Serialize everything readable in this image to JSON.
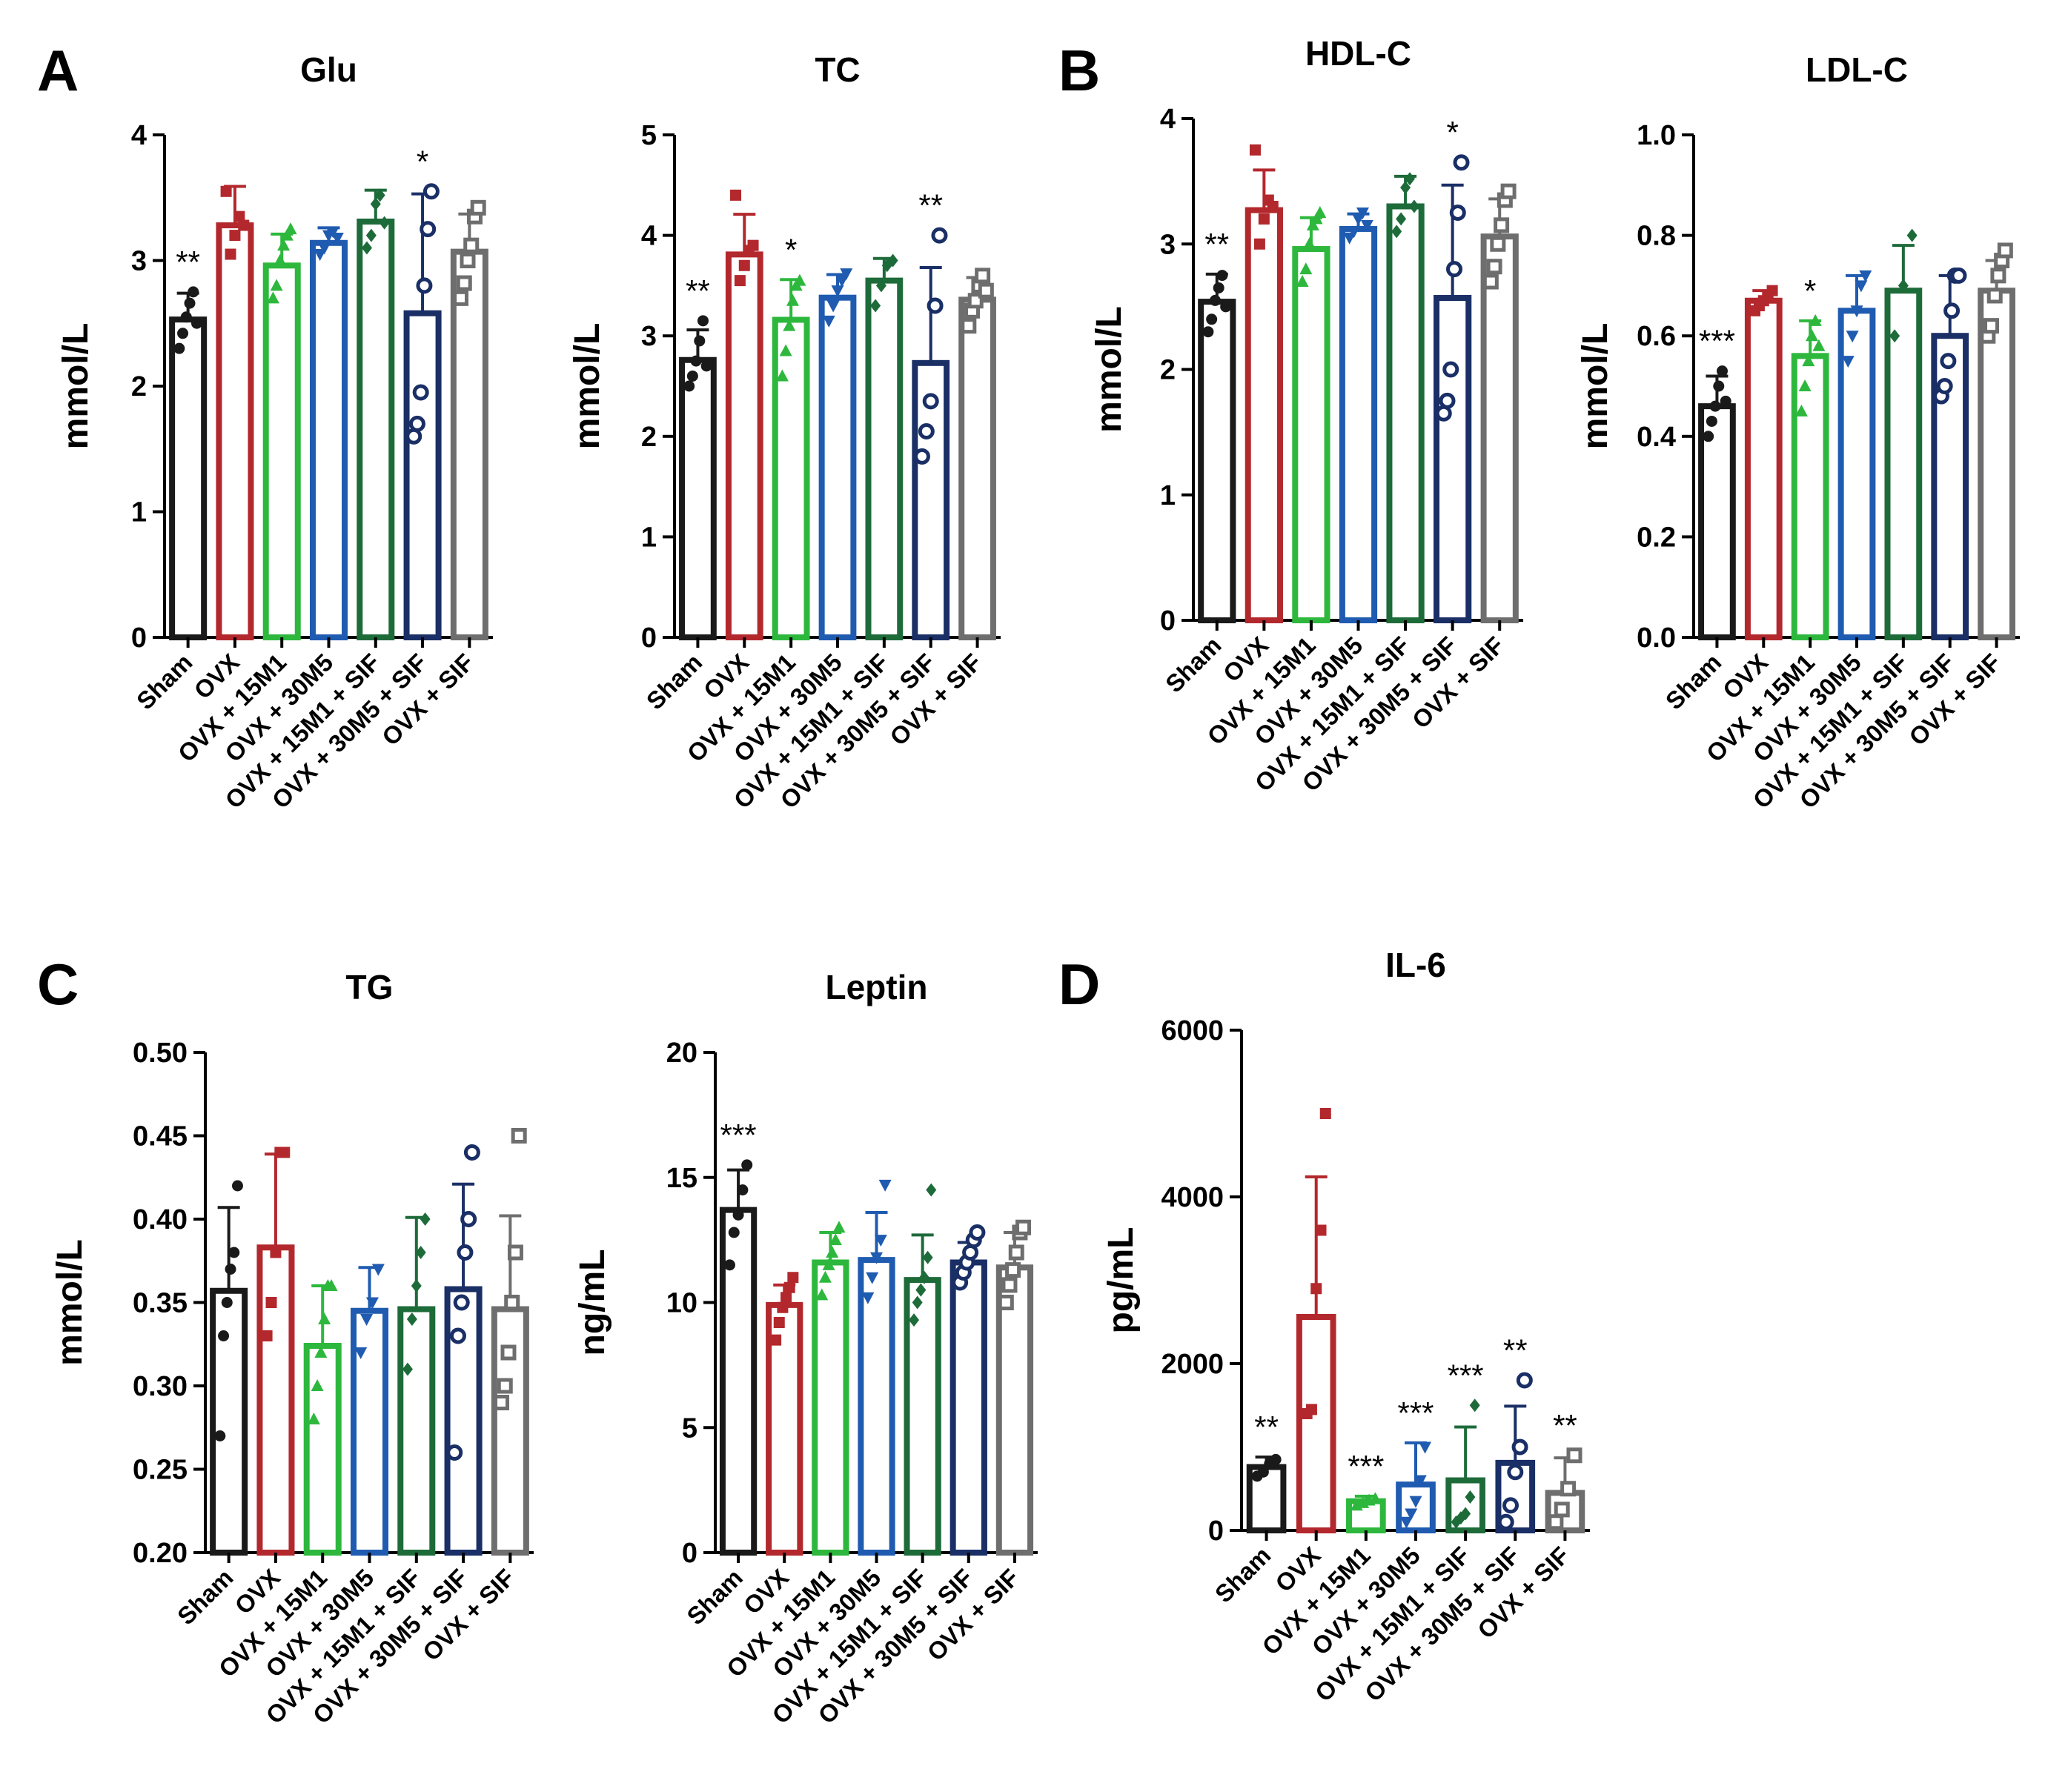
{
  "panel_letters": [
    "A",
    "B",
    "C",
    "D"
  ],
  "groups": [
    "Sham",
    "OVX",
    "OVX + 15M1",
    "OVX + 30M5",
    "OVX + 15M1 + SIF",
    "OVX + 30M5 + SIF",
    "OVX + SIF"
  ],
  "group_colors": [
    "#1a1a1a",
    "#b3282d",
    "#2db83d",
    "#1f5bb0",
    "#1e6b3a",
    "#1a2f66",
    "#6e6e6e"
  ],
  "chart_data": [
    {
      "type": "bar",
      "title": "Glu",
      "ylabel": "mmol/L",
      "ylim": [
        0,
        4
      ],
      "yticks": [
        0,
        1,
        2,
        3,
        4
      ],
      "ytick_labels": [
        "0",
        "1",
        "2",
        "3",
        "4"
      ],
      "categories": [
        "Sham",
        "OVX",
        "OVX + 15M1",
        "OVX + 30M5",
        "OVX + 15M1 + SIF",
        "OVX + 30M5 + SIF",
        "OVX + SIF"
      ],
      "values": [
        2.53,
        3.28,
        2.96,
        3.14,
        3.31,
        2.58,
        3.07
      ],
      "errors": [
        0.21,
        0.31,
        0.25,
        0.12,
        0.25,
        0.95,
        0.3
      ],
      "points": [
        [
          2.3,
          2.42,
          2.55,
          2.66,
          2.75,
          2.5
        ],
        [
          3.55,
          3.05,
          3.2,
          3.35,
          3.28
        ],
        [
          2.7,
          2.8,
          3.0,
          3.12,
          3.2,
          3.25
        ],
        [
          3.05,
          3.1,
          3.2,
          3.23,
          3.18
        ],
        [
          3.1,
          3.2,
          3.45,
          3.52,
          3.3
        ],
        [
          1.6,
          1.7,
          1.95,
          2.8,
          3.25,
          3.55
        ],
        [
          2.7,
          2.82,
          3.0,
          3.12,
          3.35,
          3.42
        ]
      ],
      "significance": [
        "**",
        "",
        "",
        "",
        "",
        "*",
        ""
      ]
    },
    {
      "type": "bar",
      "title": "TC",
      "ylabel": "mmol/L",
      "ylim": [
        0,
        5
      ],
      "yticks": [
        0,
        1,
        2,
        3,
        4,
        5
      ],
      "ytick_labels": [
        "0",
        "1",
        "2",
        "3",
        "4",
        "5"
      ],
      "categories": [
        "Sham",
        "OVX",
        "OVX + 15M1",
        "OVX + 30M5",
        "OVX + 15M1 + SIF",
        "OVX + 30M5 + SIF",
        "OVX + SIF"
      ],
      "values": [
        2.76,
        3.81,
        3.16,
        3.38,
        3.55,
        2.73,
        3.36
      ],
      "errors": [
        0.3,
        0.4,
        0.4,
        0.23,
        0.22,
        0.95,
        0.22
      ],
      "points": [
        [
          2.5,
          2.6,
          2.75,
          2.95,
          3.15,
          2.7
        ],
        [
          4.4,
          3.55,
          3.7,
          3.85,
          3.9
        ],
        [
          2.6,
          2.85,
          3.1,
          3.35,
          3.5,
          3.55
        ],
        [
          3.15,
          3.3,
          3.45,
          3.55,
          3.62
        ],
        [
          3.3,
          3.5,
          3.7,
          3.75
        ],
        [
          1.8,
          2.05,
          2.35,
          3.3,
          4.0
        ],
        [
          3.1,
          3.25,
          3.35,
          3.5,
          3.6,
          3.45
        ]
      ],
      "significance": [
        "**",
        "",
        "*",
        "",
        "",
        "**",
        ""
      ]
    },
    {
      "type": "bar",
      "title": "HDL-C",
      "ylabel": "mmol/L",
      "ylim": [
        0,
        4
      ],
      "yticks": [
        0,
        1,
        2,
        3,
        4
      ],
      "ytick_labels": [
        "0",
        "1",
        "2",
        "3",
        "4"
      ],
      "categories": [
        "Sham",
        "OVX",
        "OVX + 15M1",
        "OVX + 30M5",
        "OVX + 15M1 + SIF",
        "OVX + 30M5 + SIF",
        "OVX + SIF"
      ],
      "values": [
        2.54,
        3.27,
        2.96,
        3.12,
        3.3,
        2.57,
        3.06
      ],
      "errors": [
        0.22,
        0.32,
        0.25,
        0.12,
        0.24,
        0.9,
        0.3
      ],
      "points": [
        [
          2.3,
          2.4,
          2.55,
          2.65,
          2.75,
          2.5
        ],
        [
          3.75,
          3.0,
          3.2,
          3.35,
          3.3
        ],
        [
          2.7,
          2.8,
          3.0,
          3.15,
          3.2,
          3.25
        ],
        [
          3.05,
          3.1,
          3.2,
          3.25,
          3.15
        ],
        [
          3.1,
          3.2,
          3.45,
          3.52,
          3.3
        ],
        [
          1.65,
          1.75,
          2.0,
          2.8,
          3.25,
          3.65
        ],
        [
          2.7,
          2.82,
          3.0,
          3.15,
          3.35,
          3.42
        ]
      ],
      "significance": [
        "**",
        "",
        "",
        "",
        "",
        "*",
        ""
      ]
    },
    {
      "type": "bar",
      "title": "LDL-C",
      "ylabel": "mmol/L",
      "ylim": [
        0,
        1.0
      ],
      "yticks": [
        0,
        0.2,
        0.4,
        0.6,
        0.8,
        1.0
      ],
      "ytick_labels": [
        "0.0",
        "0.2",
        "0.4",
        "0.6",
        "0.8",
        "1.0"
      ],
      "categories": [
        "Sham",
        "OVX",
        "OVX + 15M1",
        "OVX + 30M5",
        "OVX + 15M1 + SIF",
        "OVX + 30M5 + SIF",
        "OVX + SIF"
      ],
      "values": [
        0.46,
        0.67,
        0.56,
        0.65,
        0.69,
        0.6,
        0.69
      ],
      "errors": [
        0.06,
        0.02,
        0.07,
        0.07,
        0.09,
        0.12,
        0.06
      ],
      "points": [
        [
          0.4,
          0.43,
          0.46,
          0.5,
          0.53,
          0.47
        ],
        [
          0.65,
          0.66,
          0.67,
          0.68,
          0.69
        ],
        [
          0.45,
          0.5,
          0.55,
          0.6,
          0.63,
          0.58
        ],
        [
          0.55,
          0.6,
          0.65,
          0.7,
          0.72
        ],
        [
          0.6,
          0.7,
          0.8
        ],
        [
          0.48,
          0.5,
          0.55,
          0.65,
          0.72,
          0.72
        ],
        [
          0.6,
          0.62,
          0.68,
          0.72,
          0.75,
          0.77
        ]
      ],
      "significance": [
        "***",
        "",
        "*",
        "",
        "",
        "",
        ""
      ]
    },
    {
      "type": "bar",
      "title": "TG",
      "ylabel": "mmol/L",
      "ylim": [
        0.2,
        0.5
      ],
      "yticks": [
        0.2,
        0.25,
        0.3,
        0.35,
        0.4,
        0.45,
        0.5
      ],
      "ytick_labels": [
        "0.20",
        "0.25",
        "0.30",
        "0.35",
        "0.40",
        "0.45",
        "0.50"
      ],
      "categories": [
        "Sham",
        "OVX",
        "OVX + 15M1",
        "OVX + 30M5",
        "OVX + 15M1 + SIF",
        "OVX + 30M5 + SIF",
        "OVX + SIF"
      ],
      "values": [
        0.357,
        0.383,
        0.324,
        0.345,
        0.346,
        0.358,
        0.346
      ],
      "errors": [
        0.05,
        0.056,
        0.036,
        0.026,
        0.055,
        0.063,
        0.056
      ],
      "points": [
        [
          0.27,
          0.33,
          0.35,
          0.37,
          0.38,
          0.42
        ],
        [
          0.33,
          0.35,
          0.38,
          0.44,
          0.44
        ],
        [
          0.28,
          0.3,
          0.32,
          0.34,
          0.36,
          0.36
        ],
        [
          0.32,
          0.34,
          0.35,
          0.37
        ],
        [
          0.31,
          0.34,
          0.36,
          0.38,
          0.4
        ],
        [
          0.26,
          0.33,
          0.35,
          0.38,
          0.4,
          0.44
        ],
        [
          0.29,
          0.3,
          0.32,
          0.35,
          0.38,
          0.45
        ]
      ],
      "significance": [
        "",
        "",
        "",
        "",
        "",
        "",
        ""
      ]
    },
    {
      "type": "bar",
      "title": "Leptin",
      "ylabel": "ng/mL",
      "ylim": [
        0,
        20
      ],
      "yticks": [
        0,
        5,
        10,
        15,
        20
      ],
      "ytick_labels": [
        "0",
        "5",
        "10",
        "15",
        "20"
      ],
      "categories": [
        "Sham",
        "OVX",
        "OVX + 15M1",
        "OVX + 30M5",
        "OVX + 15M1 + SIF",
        "OVX + 30M5 + SIF",
        "OVX + SIF"
      ],
      "values": [
        13.7,
        9.9,
        11.6,
        11.7,
        10.9,
        11.6,
        11.4
      ],
      "errors": [
        1.6,
        0.8,
        1.2,
        1.9,
        1.8,
        0.8,
        1.4
      ],
      "points": [
        [
          11.5,
          12.8,
          13.5,
          14.5,
          15.5
        ],
        [
          8.5,
          9.2,
          9.8,
          10.2,
          10.6,
          11.0
        ],
        [
          10.3,
          11.0,
          11.5,
          12.0,
          12.5,
          13.0
        ],
        [
          10.2,
          11.0,
          11.8,
          12.5,
          14.7
        ],
        [
          9.3,
          10.0,
          10.5,
          11.0,
          11.8,
          14.5
        ],
        [
          10.8,
          11.2,
          11.6,
          12.0,
          12.5,
          12.8
        ],
        [
          10.0,
          10.7,
          11.3,
          12.0,
          12.8,
          13.0
        ]
      ],
      "significance": [
        "***",
        "",
        "",
        "",
        "",
        "",
        ""
      ]
    },
    {
      "type": "bar",
      "title": "IL-6",
      "ylabel": "pg/mL",
      "ylim": [
        0,
        6000
      ],
      "yticks": [
        0,
        2000,
        4000,
        6000
      ],
      "ytick_labels": [
        "0",
        "2000",
        "4000",
        "6000"
      ],
      "categories": [
        "Sham",
        "OVX",
        "OVX + 15M1",
        "OVX + 30M5",
        "OVX + 15M1 + SIF",
        "OVX + 30M5 + SIF",
        "OVX + SIF"
      ],
      "values": [
        760,
        2560,
        350,
        550,
        600,
        810,
        450
      ],
      "errors": [
        120,
        1680,
        60,
        500,
        640,
        680,
        420
      ],
      "points": [
        [
          650,
          700,
          800,
          850
        ],
        [
          1400,
          1450,
          2900,
          3600,
          5000
        ],
        [
          300,
          330,
          360,
          380
        ],
        [
          100,
          200,
          350,
          600,
          1000
        ],
        [
          100,
          150,
          200,
          400,
          1500
        ],
        [
          100,
          300,
          700,
          1000,
          1800
        ],
        [
          100,
          250,
          500,
          900
        ]
      ],
      "significance": [
        "**",
        "",
        "***",
        "***",
        "***",
        "**",
        "**"
      ]
    }
  ]
}
